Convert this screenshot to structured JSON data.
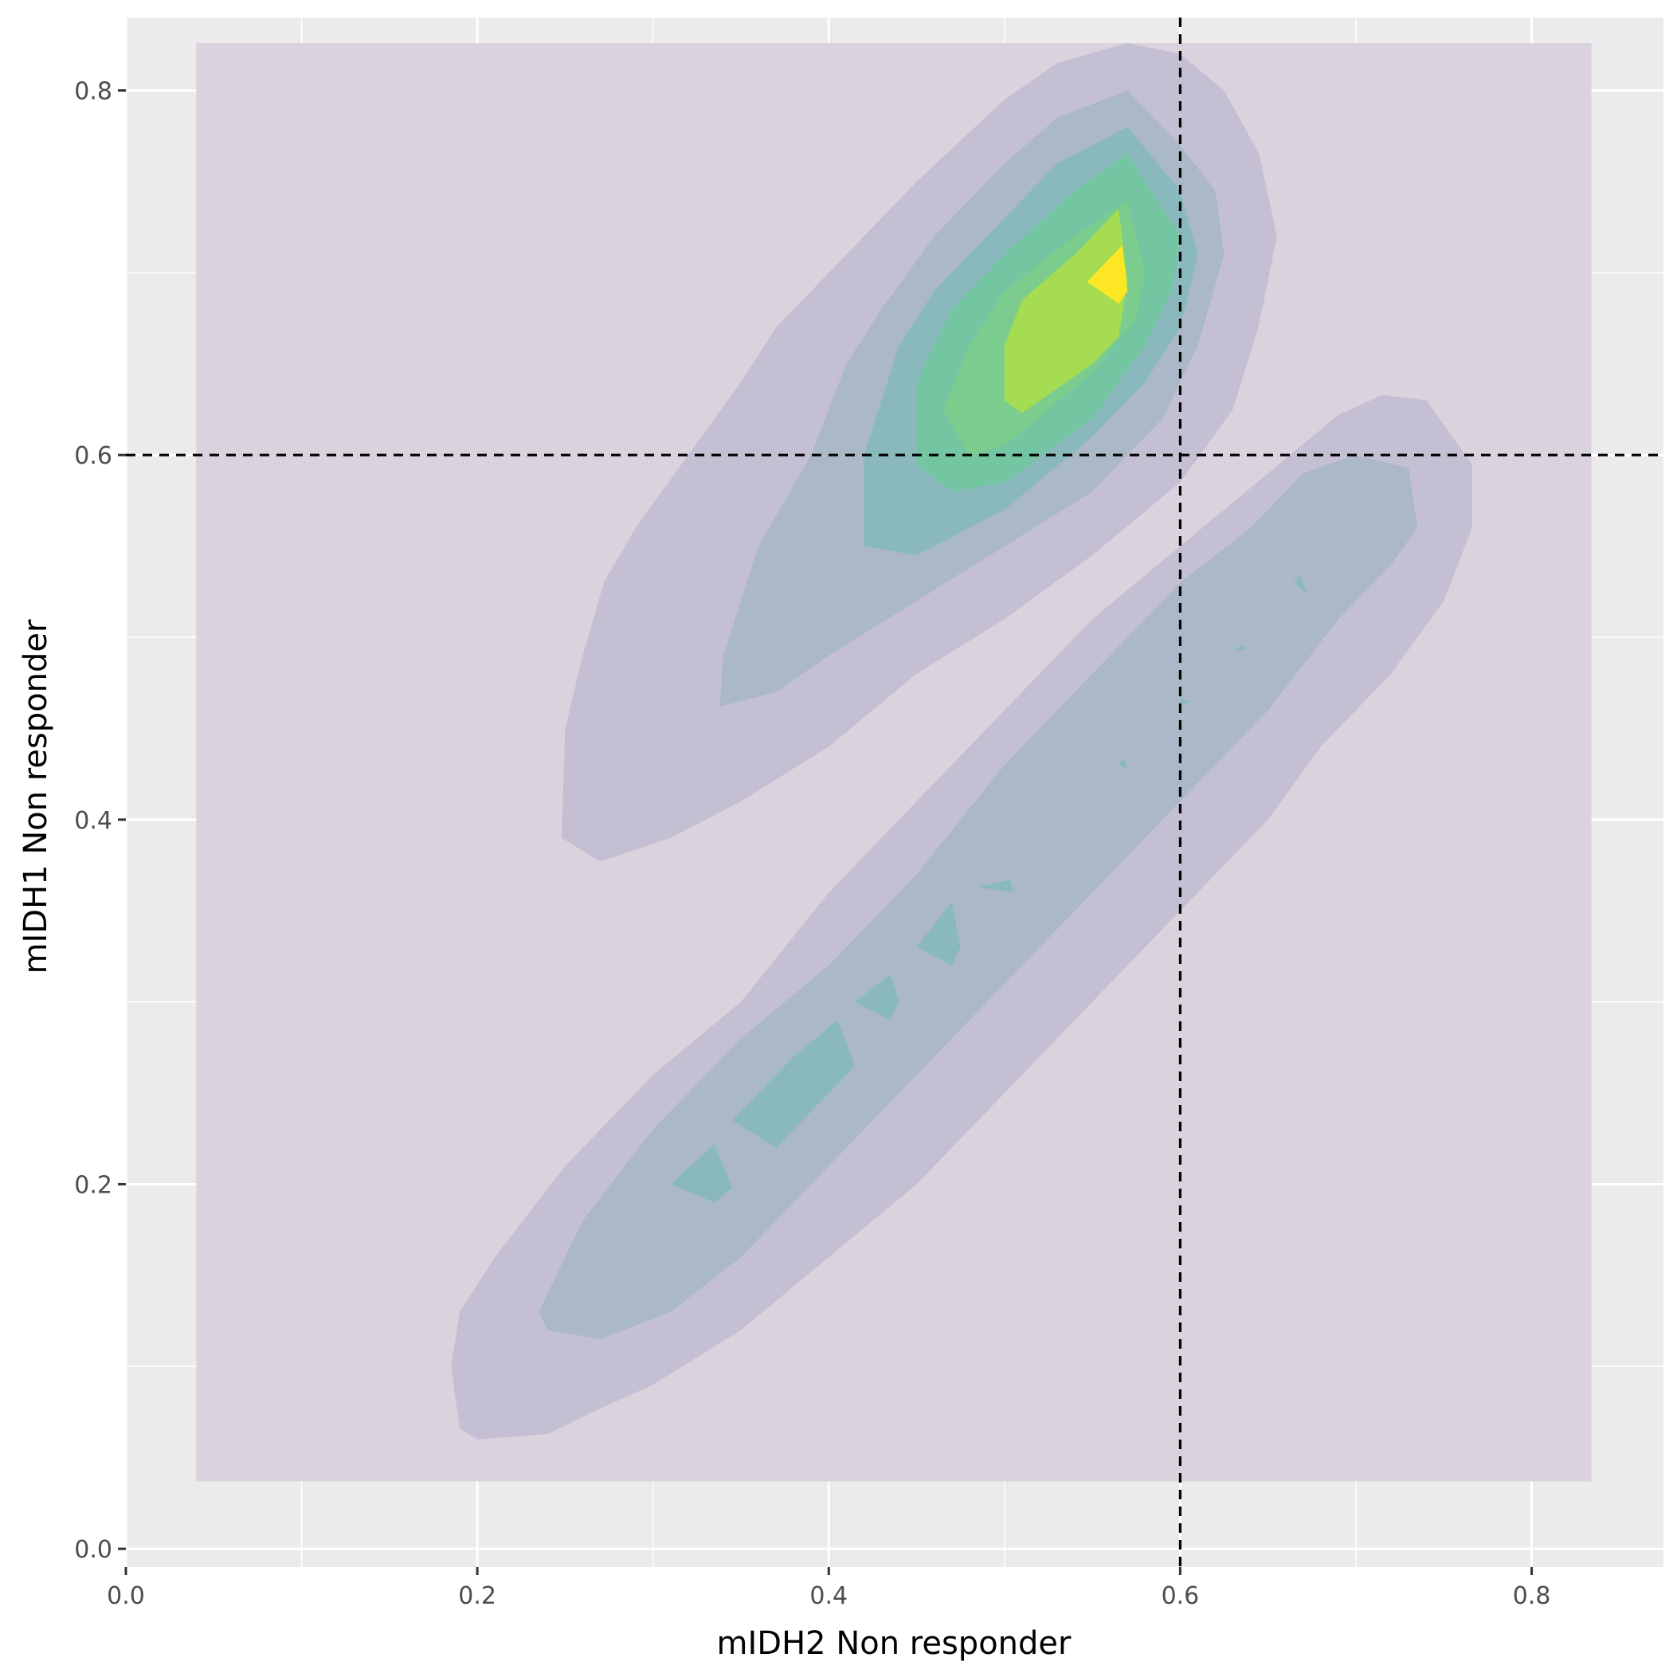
{
  "chart_data": {
    "type": "contour",
    "xlabel": "mIDH2 Non responder",
    "ylabel": "mIDH1 Non responder",
    "xlim": [
      0.0,
      0.875
    ],
    "ylim": [
      -0.01,
      0.84
    ],
    "x_ticks": [
      {
        "value": 0.0,
        "label": "0.0"
      },
      {
        "value": 0.2,
        "label": "0.2"
      },
      {
        "value": 0.4,
        "label": "0.4"
      },
      {
        "value": 0.6,
        "label": "0.6"
      },
      {
        "value": 0.8,
        "label": "0.8"
      }
    ],
    "y_ticks": [
      {
        "value": 0.0,
        "label": "0.0"
      },
      {
        "value": 0.2,
        "label": "0.2"
      },
      {
        "value": 0.4,
        "label": "0.4"
      },
      {
        "value": 0.6,
        "label": "0.6"
      },
      {
        "value": 0.8,
        "label": "0.8"
      }
    ],
    "x_minor_grid": [
      0.1,
      0.3,
      0.5,
      0.7
    ],
    "y_minor_grid": [
      0.1,
      0.3,
      0.5,
      0.7
    ],
    "grid": true,
    "reference_lines": {
      "vertical_x": 0.6,
      "horizontal_y": 0.6,
      "style": "dashed"
    },
    "colors": {
      "panel_background": "#ebebeb",
      "grid": "#ffffff",
      "reference_line": "#000000",
      "levels": [
        "#dad3dd",
        "#c4bfd3",
        "#aab8c8",
        "#8ab9bd",
        "#74c6a2",
        "#7ccc8e",
        "#a5dc51",
        "#fde725"
      ]
    },
    "density_levels": [
      {
        "level": 1,
        "polygons": [
          [
            [
              0.04,
              0.037
            ],
            [
              0.834,
              0.037
            ],
            [
              0.834,
              0.826
            ],
            [
              0.04,
              0.826
            ]
          ]
        ]
      },
      {
        "level": 2,
        "polygons": [
          [
            [
              0.248,
              0.39
            ],
            [
              0.27,
              0.377
            ],
            [
              0.31,
              0.39
            ],
            [
              0.35,
              0.41
            ],
            [
              0.4,
              0.44
            ],
            [
              0.45,
              0.48
            ],
            [
              0.5,
              0.51
            ],
            [
              0.55,
              0.545
            ],
            [
              0.6,
              0.585
            ],
            [
              0.63,
              0.625
            ],
            [
              0.645,
              0.672
            ],
            [
              0.655,
              0.72
            ],
            [
              0.645,
              0.765
            ],
            [
              0.625,
              0.8
            ],
            [
              0.6,
              0.82
            ],
            [
              0.57,
              0.826
            ],
            [
              0.53,
              0.815
            ],
            [
              0.5,
              0.795
            ],
            [
              0.45,
              0.75
            ],
            [
              0.4,
              0.7
            ],
            [
              0.37,
              0.67
            ],
            [
              0.35,
              0.64
            ],
            [
              0.32,
              0.6
            ],
            [
              0.29,
              0.56
            ],
            [
              0.272,
              0.53
            ],
            [
              0.26,
              0.49
            ],
            [
              0.25,
              0.45
            ]
          ],
          [
            [
              0.185,
              0.1
            ],
            [
              0.19,
              0.13
            ],
            [
              0.21,
              0.16
            ],
            [
              0.25,
              0.21
            ],
            [
              0.3,
              0.26
            ],
            [
              0.35,
              0.3
            ],
            [
              0.4,
              0.36
            ],
            [
              0.45,
              0.41
            ],
            [
              0.5,
              0.46
            ],
            [
              0.55,
              0.51
            ],
            [
              0.6,
              0.55
            ],
            [
              0.65,
              0.59
            ],
            [
              0.69,
              0.622
            ],
            [
              0.715,
              0.633
            ],
            [
              0.74,
              0.63
            ],
            [
              0.766,
              0.595
            ],
            [
              0.766,
              0.56
            ],
            [
              0.75,
              0.52
            ],
            [
              0.72,
              0.48
            ],
            [
              0.68,
              0.44
            ],
            [
              0.65,
              0.4
            ],
            [
              0.6,
              0.35
            ],
            [
              0.55,
              0.3
            ],
            [
              0.5,
              0.25
            ],
            [
              0.45,
              0.2
            ],
            [
              0.4,
              0.16
            ],
            [
              0.35,
              0.12
            ],
            [
              0.3,
              0.09
            ],
            [
              0.27,
              0.077
            ],
            [
              0.24,
              0.063
            ],
            [
              0.2,
              0.06
            ],
            [
              0.19,
              0.066
            ]
          ]
        ]
      },
      {
        "level": 3,
        "polygons": [
          [
            [
              0.34,
              0.49
            ],
            [
              0.338,
              0.462
            ],
            [
              0.37,
              0.47
            ],
            [
              0.4,
              0.49
            ],
            [
              0.45,
              0.52
            ],
            [
              0.5,
              0.55
            ],
            [
              0.55,
              0.58
            ],
            [
              0.59,
              0.62
            ],
            [
              0.61,
              0.66
            ],
            [
              0.625,
              0.71
            ],
            [
              0.62,
              0.745
            ],
            [
              0.6,
              0.77
            ],
            [
              0.57,
              0.8
            ],
            [
              0.53,
              0.785
            ],
            [
              0.5,
              0.76
            ],
            [
              0.46,
              0.72
            ],
            [
              0.43,
              0.68
            ],
            [
              0.41,
              0.65
            ],
            [
              0.39,
              0.6
            ],
            [
              0.36,
              0.55
            ]
          ],
          [
            [
              0.235,
              0.13
            ],
            [
              0.24,
              0.12
            ],
            [
              0.27,
              0.115
            ],
            [
              0.31,
              0.13
            ],
            [
              0.35,
              0.16
            ],
            [
              0.4,
              0.21
            ],
            [
              0.45,
              0.26
            ],
            [
              0.5,
              0.31
            ],
            [
              0.55,
              0.36
            ],
            [
              0.6,
              0.41
            ],
            [
              0.65,
              0.46
            ],
            [
              0.69,
              0.51
            ],
            [
              0.72,
              0.54
            ],
            [
              0.735,
              0.56
            ],
            [
              0.73,
              0.593
            ],
            [
              0.7,
              0.6
            ],
            [
              0.67,
              0.59
            ],
            [
              0.64,
              0.56
            ],
            [
              0.6,
              0.53
            ],
            [
              0.55,
              0.48
            ],
            [
              0.5,
              0.43
            ],
            [
              0.45,
              0.37
            ],
            [
              0.4,
              0.32
            ],
            [
              0.35,
              0.28
            ],
            [
              0.3,
              0.23
            ],
            [
              0.26,
              0.18
            ]
          ]
        ]
      },
      {
        "level": 4,
        "polygons": [
          [
            [
              0.42,
              0.55
            ],
            [
              0.45,
              0.545
            ],
            [
              0.5,
              0.57
            ],
            [
              0.55,
              0.61
            ],
            [
              0.58,
              0.64
            ],
            [
              0.6,
              0.67
            ],
            [
              0.61,
              0.71
            ],
            [
              0.6,
              0.745
            ],
            [
              0.57,
              0.78
            ],
            [
              0.53,
              0.76
            ],
            [
              0.5,
              0.73
            ],
            [
              0.46,
              0.69
            ],
            [
              0.44,
              0.66
            ],
            [
              0.42,
              0.6
            ]
          ],
          [
            [
              0.31,
              0.2
            ],
            [
              0.335,
              0.19
            ],
            [
              0.345,
              0.198
            ],
            [
              0.335,
              0.222
            ]
          ],
          [
            [
              0.345,
              0.235
            ],
            [
              0.37,
              0.22
            ],
            [
              0.4,
              0.25
            ],
            [
              0.415,
              0.265
            ],
            [
              0.405,
              0.29
            ],
            [
              0.38,
              0.27
            ]
          ],
          [
            [
              0.415,
              0.3
            ],
            [
              0.435,
              0.29
            ],
            [
              0.44,
              0.3
            ],
            [
              0.435,
              0.315
            ]
          ],
          [
            [
              0.45,
              0.33
            ],
            [
              0.47,
              0.32
            ],
            [
              0.475,
              0.33
            ],
            [
              0.47,
              0.355
            ]
          ],
          [
            [
              0.485,
              0.363
            ],
            [
              0.503,
              0.367
            ],
            [
              0.505,
              0.36
            ]
          ],
          [
            [
              0.565,
              0.43
            ],
            [
              0.57,
              0.428
            ],
            [
              0.568,
              0.433
            ]
          ],
          [
            [
              0.6,
              0.462
            ],
            [
              0.605,
              0.465
            ],
            [
              0.6,
              0.467
            ]
          ],
          [
            [
              0.632,
              0.493
            ],
            [
              0.638,
              0.493
            ],
            [
              0.635,
              0.496
            ]
          ],
          [
            [
              0.665,
              0.53
            ],
            [
              0.672,
              0.524
            ],
            [
              0.668,
              0.535
            ]
          ]
        ]
      },
      {
        "level": 5,
        "polygons": [
          [
            [
              0.45,
              0.595
            ],
            [
              0.47,
              0.58
            ],
            [
              0.5,
              0.585
            ],
            [
              0.55,
              0.62
            ],
            [
              0.58,
              0.66
            ],
            [
              0.595,
              0.69
            ],
            [
              0.6,
              0.72
            ],
            [
              0.57,
              0.765
            ],
            [
              0.54,
              0.745
            ],
            [
              0.5,
              0.71
            ],
            [
              0.47,
              0.68
            ],
            [
              0.45,
              0.64
            ]
          ]
        ]
      },
      {
        "level": 6,
        "polygons": [
          [
            [
              0.465,
              0.625
            ],
            [
              0.48,
              0.6
            ],
            [
              0.5,
              0.605
            ],
            [
              0.55,
              0.645
            ],
            [
              0.575,
              0.675
            ],
            [
              0.58,
              0.7
            ],
            [
              0.57,
              0.74
            ],
            [
              0.54,
              0.72
            ],
            [
              0.5,
              0.69
            ],
            [
              0.48,
              0.66
            ]
          ]
        ]
      },
      {
        "level": 7,
        "polygons": [
          [
            [
              0.5,
              0.63
            ],
            [
              0.51,
              0.623
            ],
            [
              0.55,
              0.65
            ],
            [
              0.565,
              0.665
            ],
            [
              0.57,
              0.695
            ],
            [
              0.565,
              0.735
            ],
            [
              0.54,
              0.71
            ],
            [
              0.51,
              0.685
            ],
            [
              0.5,
              0.66
            ]
          ]
        ]
      },
      {
        "level": 8,
        "polygons": [
          [
            [
              0.547,
              0.695
            ],
            [
              0.567,
              0.715
            ],
            [
              0.57,
              0.69
            ],
            [
              0.565,
              0.683
            ]
          ]
        ]
      }
    ]
  }
}
